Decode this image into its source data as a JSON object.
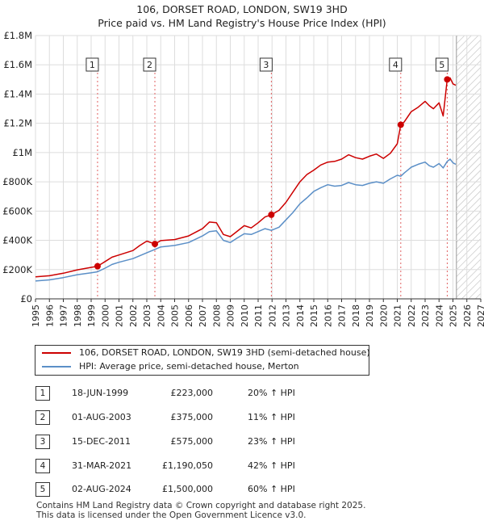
{
  "chart_data": {
    "type": "line",
    "title": "106, DORSET ROAD, LONDON, SW19 3HD",
    "subtitle": "Price paid vs. HM Land Registry's House Price Index (HPI)",
    "xlabel": "",
    "ylabel": "",
    "xlim": [
      1995,
      2027
    ],
    "ylim": [
      0,
      1800000
    ],
    "y_ticks": [
      {
        "value": 0,
        "label": "£0"
      },
      {
        "value": 200000,
        "label": "£200K"
      },
      {
        "value": 400000,
        "label": "£400K"
      },
      {
        "value": 600000,
        "label": "£600K"
      },
      {
        "value": 800000,
        "label": "£800K"
      },
      {
        "value": 1000000,
        "label": "£1M"
      },
      {
        "value": 1200000,
        "label": "£1.2M"
      },
      {
        "value": 1400000,
        "label": "£1.4M"
      },
      {
        "value": 1600000,
        "label": "£1.6M"
      },
      {
        "value": 1800000,
        "label": "£1.8M"
      }
    ],
    "x_ticks": [
      "1995",
      "1996",
      "1997",
      "1998",
      "1999",
      "2000",
      "2001",
      "2002",
      "2003",
      "2004",
      "2005",
      "2006",
      "2007",
      "2008",
      "2009",
      "2010",
      "2011",
      "2012",
      "2013",
      "2014",
      "2015",
      "2016",
      "2017",
      "2018",
      "2019",
      "2020",
      "2021",
      "2022",
      "2023",
      "2024",
      "2025",
      "2026",
      "2027"
    ],
    "grid": true,
    "forecast_start": 2025.25,
    "series": [
      {
        "name": "106, DORSET ROAD, LONDON, SW19 3HD (semi-detached house)",
        "color": "#cc0000",
        "x": [
          1995.0,
          1996.0,
          1997.0,
          1998.0,
          1999.46,
          2000.0,
          2000.5,
          2001.0,
          2002.0,
          2002.5,
          2003.0,
          2003.58,
          2004.0,
          2005.0,
          2006.0,
          2007.0,
          2007.5,
          2008.0,
          2008.5,
          2009.0,
          2009.4,
          2010.0,
          2010.5,
          2011.0,
          2011.5,
          2011.95,
          2012.5,
          2013.0,
          2013.5,
          2014.0,
          2014.5,
          2015.0,
          2015.5,
          2016.0,
          2016.5,
          2017.0,
          2017.5,
          2018.0,
          2018.5,
          2019.0,
          2019.5,
          2020.0,
          2020.5,
          2021.0,
          2021.25,
          2021.5,
          2022.0,
          2022.5,
          2023.0,
          2023.3,
          2023.6,
          2024.0,
          2024.3,
          2024.59,
          2024.8,
          2025.0,
          2025.2
        ],
        "values": [
          150000,
          158000,
          175000,
          198000,
          223000,
          255000,
          285000,
          300000,
          330000,
          365000,
          395000,
          375000,
          398000,
          405000,
          430000,
          480000,
          525000,
          520000,
          440000,
          425000,
          455000,
          500000,
          485000,
          520000,
          560000,
          575000,
          605000,
          660000,
          730000,
          800000,
          850000,
          880000,
          915000,
          935000,
          940000,
          955000,
          985000,
          965000,
          955000,
          975000,
          990000,
          960000,
          995000,
          1060000,
          1190050,
          1210000,
          1280000,
          1310000,
          1350000,
          1320000,
          1300000,
          1340000,
          1250000,
          1500000,
          1510000,
          1470000,
          1460000
        ]
      },
      {
        "name": "HPI: Average price, semi-detached house, Merton",
        "color": "#5b8fc7",
        "x": [
          1995.0,
          1996.0,
          1997.0,
          1998.0,
          1999.0,
          1999.46,
          2000.0,
          2000.5,
          2001.0,
          2002.0,
          2003.0,
          2003.58,
          2004.0,
          2005.0,
          2006.0,
          2007.0,
          2007.5,
          2008.0,
          2008.5,
          2009.0,
          2009.4,
          2010.0,
          2010.5,
          2011.0,
          2011.5,
          2011.95,
          2012.5,
          2013.0,
          2013.5,
          2014.0,
          2014.5,
          2015.0,
          2015.5,
          2016.0,
          2016.5,
          2017.0,
          2017.5,
          2018.0,
          2018.5,
          2019.0,
          2019.5,
          2020.0,
          2020.5,
          2021.0,
          2021.25,
          2021.5,
          2022.0,
          2022.5,
          2023.0,
          2023.3,
          2023.6,
          2024.0,
          2024.3,
          2024.59,
          2024.8,
          2025.0,
          2025.2
        ],
        "values": [
          122000,
          130000,
          145000,
          165000,
          178000,
          185000,
          210000,
          235000,
          250000,
          275000,
          315000,
          338000,
          355000,
          365000,
          385000,
          430000,
          460000,
          465000,
          400000,
          385000,
          410000,
          445000,
          440000,
          460000,
          480000,
          468000,
          490000,
          540000,
          590000,
          650000,
          690000,
          735000,
          760000,
          780000,
          770000,
          775000,
          795000,
          780000,
          775000,
          790000,
          800000,
          790000,
          820000,
          845000,
          838000,
          860000,
          900000,
          920000,
          935000,
          910000,
          900000,
          925000,
          895000,
          940000,
          955000,
          930000,
          920000
        ]
      }
    ],
    "transactions": [
      {
        "num": "1",
        "date": "18-JUN-1999",
        "price": "£223,000",
        "hpi": "20% ↑ HPI",
        "x": 1999.46,
        "value": 223000
      },
      {
        "num": "2",
        "date": "01-AUG-2003",
        "price": "£375,000",
        "hpi": "11% ↑ HPI",
        "x": 2003.58,
        "value": 375000
      },
      {
        "num": "3",
        "date": "15-DEC-2011",
        "price": "£575,000",
        "hpi": "23% ↑ HPI",
        "x": 2011.95,
        "value": 575000
      },
      {
        "num": "4",
        "date": "31-MAR-2021",
        "price": "£1,190,050",
        "hpi": "42% ↑ HPI",
        "x": 2021.25,
        "value": 1190050
      },
      {
        "num": "5",
        "date": "02-AUG-2024",
        "price": "£1,500,000",
        "hpi": "60% ↑ HPI",
        "x": 2024.59,
        "value": 1500000
      }
    ]
  },
  "footer": {
    "line1": "Contains HM Land Registry data © Crown copyright and database right 2025.",
    "line2": "This data is licensed under the Open Government Licence v3.0."
  }
}
